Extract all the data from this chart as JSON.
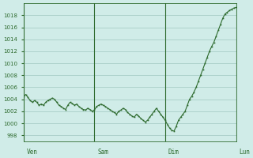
{
  "title": "",
  "background_color": "#d0ece8",
  "plot_bg_color": "#d0ece8",
  "line_color": "#2d6a2d",
  "marker_color": "#2d6a2d",
  "grid_color": "#a0c8c0",
  "tick_label_color": "#2d6a2d",
  "axis_color": "#2d6a2d",
  "ylim": [
    997,
    1020
  ],
  "yticks": [
    998,
    1000,
    1002,
    1004,
    1006,
    1008,
    1010,
    1012,
    1014,
    1016,
    1018
  ],
  "day_labels": [
    "Ven",
    "Sam",
    "Dim",
    "Lun"
  ],
  "day_positions": [
    0,
    96,
    192,
    288
  ],
  "x_values": [
    0,
    3,
    6,
    9,
    12,
    15,
    18,
    21,
    24,
    27,
    30,
    33,
    36,
    39,
    42,
    45,
    48,
    51,
    54,
    57,
    60,
    63,
    66,
    69,
    72,
    75,
    78,
    81,
    84,
    87,
    90,
    93,
    96,
    99,
    102,
    105,
    108,
    111,
    114,
    117,
    120,
    123,
    126,
    129,
    132,
    135,
    138,
    141,
    144,
    147,
    150,
    153,
    156,
    159,
    162,
    165,
    168,
    171,
    174,
    177,
    180,
    183,
    186,
    189,
    192,
    195,
    198,
    201,
    204,
    207,
    210,
    213,
    216,
    219,
    222,
    225,
    228,
    231,
    234,
    237,
    240,
    243,
    246,
    249,
    252,
    255,
    258,
    261,
    264,
    267,
    270,
    273,
    276,
    279,
    282,
    285,
    288
  ],
  "y_values": [
    1004.5,
    1004.8,
    1004.3,
    1003.8,
    1003.5,
    1003.8,
    1003.5,
    1003.0,
    1003.2,
    1003.0,
    1003.5,
    1003.8,
    1004.0,
    1004.2,
    1004.0,
    1003.5,
    1003.0,
    1002.8,
    1002.5,
    1002.3,
    1003.0,
    1003.5,
    1003.3,
    1003.0,
    1003.2,
    1002.8,
    1002.5,
    1002.3,
    1002.2,
    1002.5,
    1002.3,
    1002.0,
    1002.2,
    1002.8,
    1003.0,
    1003.2,
    1003.0,
    1002.8,
    1002.5,
    1002.3,
    1002.0,
    1001.8,
    1001.5,
    1002.0,
    1002.2,
    1002.5,
    1002.3,
    1001.8,
    1001.5,
    1001.2,
    1001.0,
    1001.5,
    1001.2,
    1000.8,
    1000.5,
    1000.2,
    1000.5,
    1001.0,
    1001.5,
    1002.0,
    1002.5,
    1002.0,
    1001.5,
    1001.0,
    1000.5,
    999.8,
    999.2,
    998.8,
    998.7,
    999.5,
    1000.5,
    1001.0,
    1001.5,
    1002.0,
    1003.0,
    1004.0,
    1004.5,
    1005.2,
    1006.0,
    1007.0,
    1008.0,
    1009.0,
    1010.0,
    1011.0,
    1012.0,
    1012.8,
    1013.5,
    1014.5,
    1015.5,
    1016.5,
    1017.5,
    1018.2,
    1018.5,
    1018.8,
    1019.0,
    1019.2,
    1019.3
  ]
}
